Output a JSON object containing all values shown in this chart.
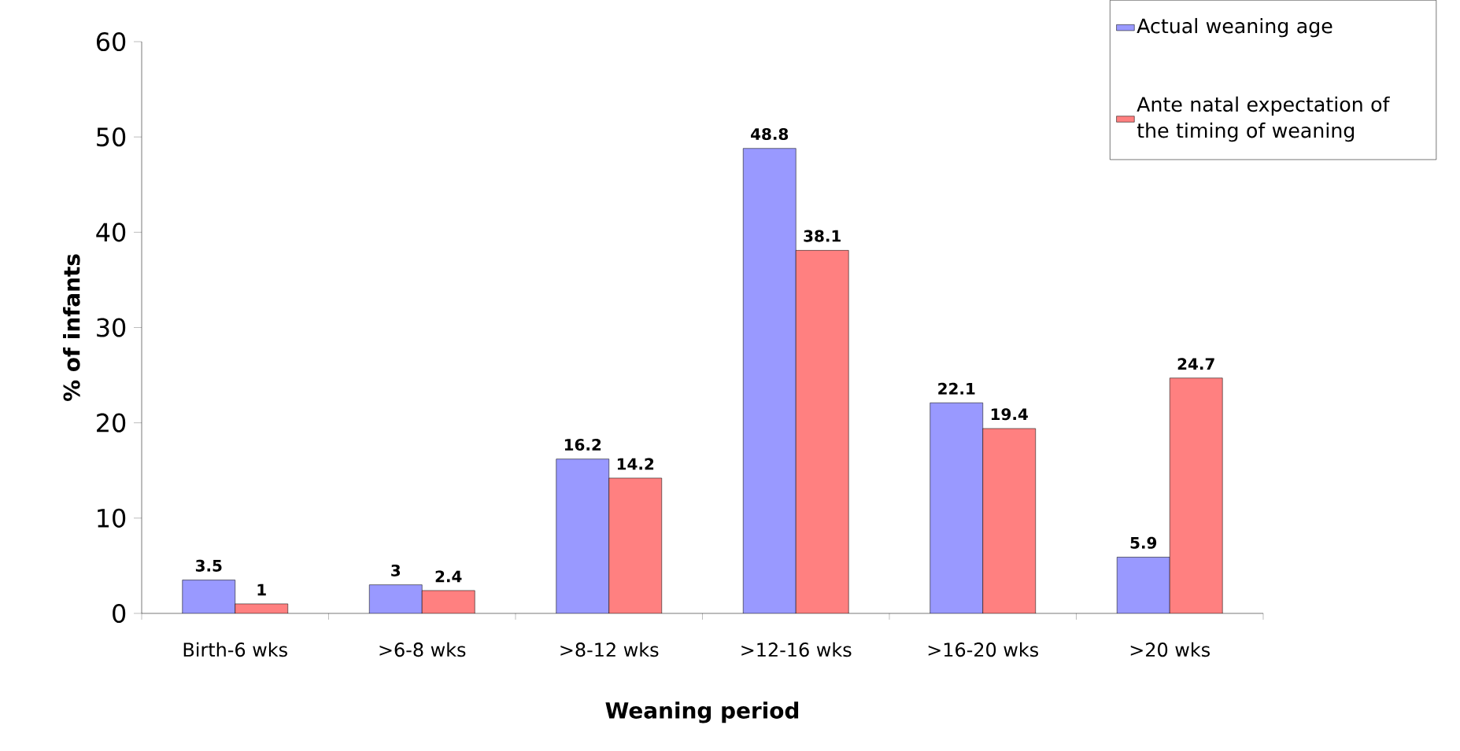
{
  "chart_data": {
    "type": "bar",
    "xlabel": "Weaning period",
    "ylabel": "% of infants",
    "categories": [
      "Birth-6 wks",
      ">6-8 wks",
      ">8-12 wks",
      ">12-16 wks",
      ">16-20 wks",
      ">20 wks"
    ],
    "series": [
      {
        "name": "Actual weaning age",
        "color": "#9999ff",
        "values": [
          3.5,
          3,
          16.2,
          48.8,
          22.1,
          5.9
        ]
      },
      {
        "name": "Ante natal expectation of the timing of weaning",
        "color": "#ff8080",
        "values": [
          1,
          2.4,
          14.2,
          38.1,
          19.4,
          24.7
        ]
      }
    ],
    "ylim": [
      0,
      60
    ],
    "yticks": [
      0,
      10,
      20,
      30,
      40,
      50,
      60
    ],
    "data_labels": true,
    "legend": "top right",
    "grid": false
  }
}
